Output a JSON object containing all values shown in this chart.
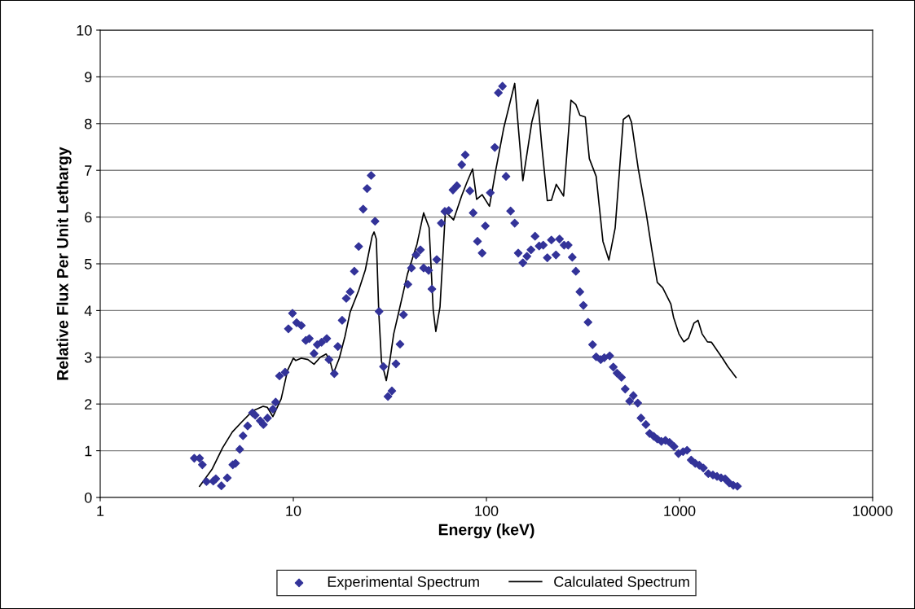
{
  "chart_data": {
    "type": "scatter",
    "xlabel": "Energy (keV)",
    "ylabel": "Relative Flux Per Unit Lethargy",
    "log": "x",
    "xlim": [
      1,
      10000
    ],
    "xticks": [
      1,
      10,
      100,
      1000,
      10000
    ],
    "ylim": [
      0,
      10
    ],
    "yticks": [
      0,
      1,
      2,
      3,
      4,
      5,
      6,
      7,
      8,
      9,
      10
    ],
    "grid": "y",
    "legend": "bottom",
    "series": [
      {
        "name": "Experimental Spectrum",
        "marker": "diamond",
        "color": "#333399",
        "x": [
          3.07,
          3.27,
          3.38,
          3.55,
          3.85,
          3.97,
          4.24,
          4.55,
          4.86,
          5.02,
          5.28,
          5.49,
          5.8,
          6.15,
          6.35,
          6.74,
          7.0,
          7.35,
          7.84,
          8.1,
          8.48,
          9.07,
          9.43,
          9.9,
          10.4,
          11.0,
          11.6,
          12.1,
          12.8,
          13.3,
          14.0,
          14.9,
          15.3,
          16.3,
          17.0,
          17.9,
          18.8,
          19.7,
          20.7,
          21.8,
          23.0,
          24.1,
          25.3,
          26.5,
          27.8,
          29.3,
          30.9,
          32.4,
          34.0,
          35.7,
          37.2,
          39.2,
          40.9,
          43.2,
          45.5,
          47.3,
          50.2,
          52.2,
          55.3,
          58.4,
          60.9,
          63.8,
          67.1,
          70.3,
          74.5,
          77.7,
          82.1,
          85.4,
          89.9,
          95.0,
          98.7,
          104.7,
          110.5,
          115.3,
          121.1,
          126.3,
          133.4,
          140.1,
          146.1,
          154.4,
          162.1,
          170.1,
          178.6,
          187.5,
          196.9,
          206.7,
          217.0,
          229.1,
          239.1,
          252.5,
          265.1,
          278.3,
          290.4,
          304.8,
          317.8,
          335.9,
          354.6,
          370.1,
          390.8,
          407.8,
          434.9,
          454.0,
          474.8,
          500.4,
          523.2,
          551.4,
          576.6,
          607.6,
          631.7,
          669.6,
          700.2,
          735.1,
          767.2,
          805.4,
          845.3,
          887.4,
          937.0,
          987.4,
          1043,
          1094,
          1149,
          1206,
          1266,
          1329,
          1409,
          1489,
          1564,
          1641,
          1723,
          1809,
          1899,
          1994
        ],
        "values": [
          0.84,
          0.84,
          0.7,
          0.34,
          0.35,
          0.4,
          0.25,
          0.42,
          0.7,
          0.73,
          1.03,
          1.32,
          1.53,
          1.81,
          1.76,
          1.64,
          1.56,
          1.7,
          1.89,
          2.04,
          2.6,
          2.68,
          3.61,
          3.94,
          3.74,
          3.68,
          3.36,
          3.4,
          3.08,
          3.27,
          3.32,
          3.4,
          2.95,
          2.65,
          3.23,
          3.79,
          4.26,
          4.4,
          4.84,
          5.37,
          6.17,
          6.61,
          6.89,
          5.91,
          3.98,
          2.8,
          2.16,
          2.28,
          2.86,
          3.28,
          3.91,
          4.56,
          4.91,
          5.19,
          5.3,
          4.91,
          4.86,
          4.46,
          5.09,
          5.87,
          6.12,
          6.14,
          6.58,
          6.67,
          7.12,
          7.33,
          6.56,
          6.09,
          5.48,
          5.23,
          5.81,
          6.52,
          7.49,
          8.66,
          8.8,
          6.87,
          6.13,
          5.87,
          5.23,
          5.02,
          5.16,
          5.3,
          5.59,
          5.38,
          5.4,
          5.13,
          5.51,
          5.19,
          5.53,
          5.4,
          5.4,
          5.14,
          4.84,
          4.4,
          4.11,
          3.75,
          3.27,
          3.01,
          2.95,
          2.99,
          3.03,
          2.79,
          2.66,
          2.57,
          2.32,
          2.06,
          2.18,
          2.02,
          1.7,
          1.56,
          1.37,
          1.31,
          1.25,
          1.2,
          1.22,
          1.18,
          1.09,
          0.94,
          0.98,
          1.01,
          0.8,
          0.73,
          0.69,
          0.63,
          0.51,
          0.48,
          0.45,
          0.42,
          0.4,
          0.31,
          0.26,
          0.24
        ]
      },
      {
        "name": "Calculated Spectrum",
        "type": "line",
        "marker": "none",
        "line_style": "solid",
        "color": "#000000",
        "x": [
          3.27,
          3.79,
          4.3,
          4.83,
          5.42,
          6.15,
          6.98,
          7.33,
          7.84,
          8.65,
          9.34,
          10.0,
          10.3,
          11.0,
          11.9,
          12.8,
          13.8,
          14.8,
          15.5,
          16.1,
          17.3,
          18.5,
          19.7,
          21.8,
          23.6,
          24.6,
          25.6,
          26.2,
          26.9,
          27.7,
          28.6,
          30.3,
          31.6,
          33.1,
          35.4,
          39.0,
          43.7,
          47.3,
          50.5,
          53.0,
          54.7,
          57.5,
          61.3,
          67.6,
          74.5,
          79.4,
          84.8,
          89.0,
          95.0,
          103.7,
          111.6,
          123.0,
          140.1,
          147.1,
          154.4,
          171.8,
          184.4,
          193.6,
          206.7,
          217.0,
          229.9,
          251.0,
          274.0,
          290.4,
          304.8,
          325.0,
          341.2,
          370.1,
          401.2,
          430.8,
          464.3,
          511.6,
          546.0,
          563.8,
          611.0,
          673.3,
          718.8,
          767.2,
          817.9,
          901.6,
          931.8,
          993.1,
          1053,
          1113,
          1188,
          1247,
          1309,
          1395,
          1465,
          1669,
          1779,
          1961
        ],
        "values": [
          0.24,
          0.6,
          1.06,
          1.4,
          1.62,
          1.85,
          1.95,
          1.93,
          1.73,
          2.11,
          2.72,
          2.98,
          2.93,
          2.98,
          2.95,
          2.85,
          3.0,
          3.07,
          2.92,
          2.65,
          2.98,
          3.44,
          3.97,
          4.43,
          4.87,
          5.24,
          5.59,
          5.68,
          5.53,
          3.97,
          2.92,
          2.5,
          2.92,
          3.5,
          4.02,
          4.78,
          5.42,
          6.09,
          5.77,
          4.02,
          3.55,
          4.08,
          6.12,
          5.94,
          6.46,
          6.75,
          7.03,
          6.38,
          6.48,
          6.23,
          6.99,
          7.91,
          8.86,
          7.8,
          6.78,
          8.03,
          8.51,
          7.51,
          6.35,
          6.36,
          6.7,
          6.45,
          8.5,
          8.41,
          8.18,
          8.14,
          7.25,
          6.87,
          5.48,
          5.08,
          5.77,
          8.09,
          8.18,
          8.03,
          7.04,
          6.06,
          5.3,
          4.6,
          4.49,
          4.14,
          3.85,
          3.5,
          3.33,
          3.41,
          3.73,
          3.79,
          3.5,
          3.33,
          3.32,
          2.98,
          2.8,
          2.57
        ]
      }
    ]
  }
}
